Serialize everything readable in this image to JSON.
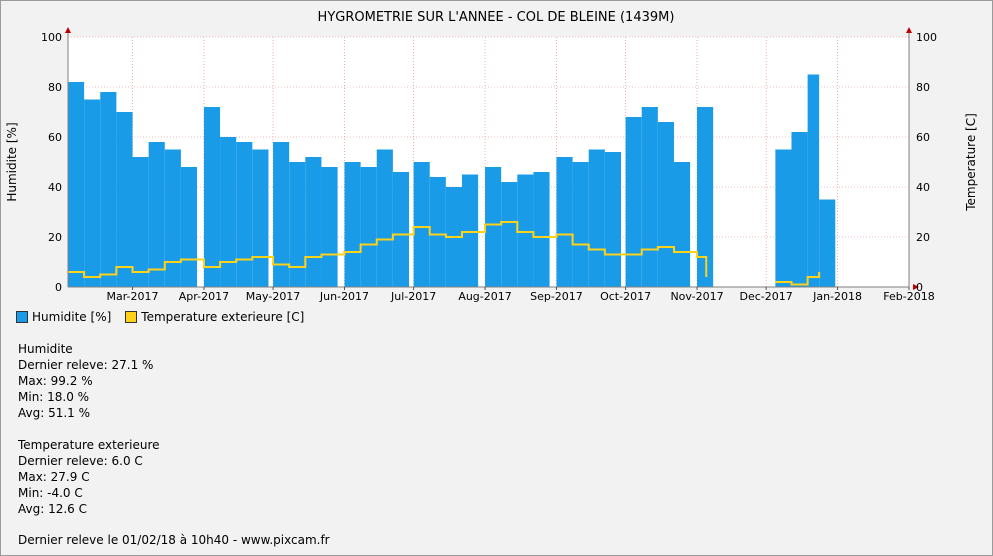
{
  "chart_data": {
    "type": "bar",
    "title": "HYGROMETRIE SUR L'ANNEE - COL DE BLEINE (1439M)",
    "ylabel_left": "Humidite [%]",
    "ylabel_right": "Temperature [C]",
    "ylim": [
      0,
      100
    ],
    "y_ticks": [
      "0",
      "20",
      "40",
      "60",
      "80",
      "100"
    ],
    "x_range": [
      "2017-02-01",
      "2018-02-01"
    ],
    "x_ticks": [
      {
        "label": "Mar-2017",
        "date": "2017-03-01"
      },
      {
        "label": "Apr-2017",
        "date": "2017-04-01"
      },
      {
        "label": "May-2017",
        "date": "2017-05-01"
      },
      {
        "label": "Jun-2017",
        "date": "2017-06-01"
      },
      {
        "label": "Jul-2017",
        "date": "2017-07-01"
      },
      {
        "label": "Aug-2017",
        "date": "2017-08-01"
      },
      {
        "label": "Sep-2017",
        "date": "2017-09-01"
      },
      {
        "label": "Oct-2017",
        "date": "2017-10-01"
      },
      {
        "label": "Nov-2017",
        "date": "2017-11-01"
      },
      {
        "label": "Dec-2017",
        "date": "2017-12-01"
      },
      {
        "label": "Jan-2018",
        "date": "2018-01-01"
      },
      {
        "label": "Feb-2018",
        "date": "2018-02-01"
      }
    ],
    "grid": true,
    "series": [
      {
        "name": "Humidite [%]",
        "type": "bar",
        "color": "#1a9be8",
        "points": [
          [
            "2017-02-01",
            82
          ],
          [
            "2017-02-08",
            75
          ],
          [
            "2017-02-15",
            78
          ],
          [
            "2017-02-22",
            70
          ],
          [
            "2017-03-01",
            52
          ],
          [
            "2017-03-08",
            58
          ],
          [
            "2017-03-15",
            55
          ],
          [
            "2017-03-22",
            48
          ],
          [
            "2017-04-01",
            72
          ],
          [
            "2017-04-08",
            60
          ],
          [
            "2017-04-15",
            58
          ],
          [
            "2017-04-22",
            55
          ],
          [
            "2017-05-01",
            58
          ],
          [
            "2017-05-08",
            50
          ],
          [
            "2017-05-15",
            52
          ],
          [
            "2017-05-22",
            48
          ],
          [
            "2017-06-01",
            50
          ],
          [
            "2017-06-08",
            48
          ],
          [
            "2017-06-15",
            55
          ],
          [
            "2017-06-22",
            46
          ],
          [
            "2017-07-01",
            50
          ],
          [
            "2017-07-08",
            44
          ],
          [
            "2017-07-15",
            40
          ],
          [
            "2017-07-22",
            45
          ],
          [
            "2017-08-01",
            48
          ],
          [
            "2017-08-08",
            42
          ],
          [
            "2017-08-15",
            45
          ],
          [
            "2017-08-22",
            46
          ],
          [
            "2017-09-01",
            52
          ],
          [
            "2017-09-08",
            50
          ],
          [
            "2017-09-15",
            55
          ],
          [
            "2017-09-22",
            54
          ],
          [
            "2017-10-01",
            68
          ],
          [
            "2017-10-08",
            72
          ],
          [
            "2017-10-15",
            66
          ],
          [
            "2017-10-22",
            50
          ],
          [
            "2017-11-01",
            72
          ],
          [
            "2017-12-05",
            55
          ],
          [
            "2017-12-12",
            62
          ],
          [
            "2017-12-19",
            85
          ],
          [
            "2017-12-24",
            35
          ]
        ]
      },
      {
        "name": "Temperature exterieure [C]",
        "type": "line",
        "color": "#ffd21a",
        "points": [
          [
            "2017-02-01",
            6
          ],
          [
            "2017-02-08",
            4
          ],
          [
            "2017-02-15",
            5
          ],
          [
            "2017-02-22",
            8
          ],
          [
            "2017-03-01",
            6
          ],
          [
            "2017-03-08",
            7
          ],
          [
            "2017-03-15",
            10
          ],
          [
            "2017-03-22",
            11
          ],
          [
            "2017-04-01",
            8
          ],
          [
            "2017-04-08",
            10
          ],
          [
            "2017-04-15",
            11
          ],
          [
            "2017-04-22",
            12
          ],
          [
            "2017-05-01",
            9
          ],
          [
            "2017-05-08",
            8
          ],
          [
            "2017-05-15",
            12
          ],
          [
            "2017-05-22",
            13
          ],
          [
            "2017-06-01",
            14
          ],
          [
            "2017-06-08",
            17
          ],
          [
            "2017-06-15",
            19
          ],
          [
            "2017-06-22",
            21
          ],
          [
            "2017-07-01",
            24
          ],
          [
            "2017-07-08",
            21
          ],
          [
            "2017-07-15",
            20
          ],
          [
            "2017-07-22",
            22
          ],
          [
            "2017-08-01",
            25
          ],
          [
            "2017-08-08",
            26
          ],
          [
            "2017-08-15",
            22
          ],
          [
            "2017-08-22",
            20
          ],
          [
            "2017-09-01",
            21
          ],
          [
            "2017-09-08",
            17
          ],
          [
            "2017-09-15",
            15
          ],
          [
            "2017-09-22",
            13
          ],
          [
            "2017-10-01",
            13
          ],
          [
            "2017-10-08",
            15
          ],
          [
            "2017-10-15",
            16
          ],
          [
            "2017-10-22",
            14
          ],
          [
            "2017-11-01",
            12
          ],
          [
            "2017-11-05",
            4
          ],
          [
            "2017-12-05",
            2
          ],
          [
            "2017-12-12",
            1
          ],
          [
            "2017-12-19",
            4
          ],
          [
            "2017-12-24",
            6
          ]
        ]
      }
    ]
  },
  "stats": {
    "humidite": {
      "title": "Humidite",
      "dernier": "Dernier releve: 27.1 %",
      "max": "Max: 99.2 %",
      "min": "Min: 18.0 %",
      "avg": "Avg: 51.1 %"
    },
    "temperature": {
      "title": "Temperature exterieure",
      "dernier": "Dernier releve: 6.0 C",
      "max": "Max: 27.9 C",
      "min": "Min: -4.0 C",
      "avg": "Avg: 12.6 C"
    }
  },
  "footer": "Dernier releve le 01/02/18 à 10h40 - www.pixcam.fr"
}
